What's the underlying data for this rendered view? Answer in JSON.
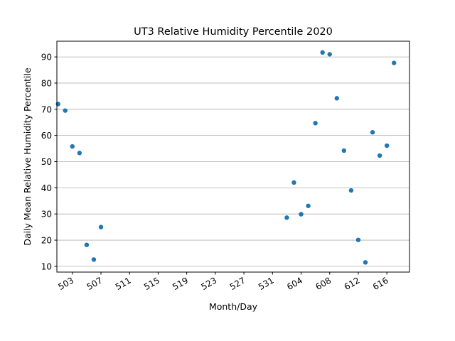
{
  "chart_data": {
    "type": "scatter",
    "title": "UT3 Relative Humidity Percentile 2020",
    "xlabel": "Month/Day",
    "ylabel": "Daily Mean Relative Humidity Percentile",
    "x_tick_labels": [
      "503",
      "507",
      "511",
      "515",
      "519",
      "523",
      "527",
      "531",
      "604",
      "608",
      "612",
      "616"
    ],
    "x_tick_dates": [
      "2020-05-03",
      "2020-05-07",
      "2020-05-11",
      "2020-05-15",
      "2020-05-19",
      "2020-05-23",
      "2020-05-27",
      "2020-05-31",
      "2020-06-04",
      "2020-06-08",
      "2020-06-12",
      "2020-06-16"
    ],
    "xlim": [
      "2020-04-30T20:00",
      "2020-06-19T04:00"
    ],
    "y_ticks": [
      10,
      20,
      30,
      40,
      50,
      60,
      70,
      80,
      90
    ],
    "ylim": [
      7.8,
      96
    ],
    "grid": "y-major",
    "marker_color": "#1f77b4",
    "points": [
      {
        "x": "2020-05-01",
        "y": 72
      },
      {
        "x": "2020-05-02",
        "y": 69.5
      },
      {
        "x": "2020-05-03",
        "y": 55.8
      },
      {
        "x": "2020-05-04",
        "y": 53.3
      },
      {
        "x": "2020-05-05",
        "y": 18.2
      },
      {
        "x": "2020-05-06",
        "y": 12.6
      },
      {
        "x": "2020-05-07",
        "y": 25
      },
      {
        "x": "2020-06-02",
        "y": 28.6
      },
      {
        "x": "2020-06-03",
        "y": 42
      },
      {
        "x": "2020-06-04",
        "y": 29.9
      },
      {
        "x": "2020-06-05",
        "y": 33.1
      },
      {
        "x": "2020-06-06",
        "y": 64.7
      },
      {
        "x": "2020-06-07",
        "y": 91.7
      },
      {
        "x": "2020-06-08",
        "y": 91
      },
      {
        "x": "2020-06-09",
        "y": 74.2
      },
      {
        "x": "2020-06-10",
        "y": 54.2
      },
      {
        "x": "2020-06-11",
        "y": 39
      },
      {
        "x": "2020-06-12",
        "y": 20.1
      },
      {
        "x": "2020-06-13",
        "y": 11.5
      },
      {
        "x": "2020-06-14",
        "y": 61.2
      },
      {
        "x": "2020-06-15",
        "y": 52.3
      },
      {
        "x": "2020-06-16",
        "y": 56.1
      },
      {
        "x": "2020-06-17",
        "y": 87.7
      }
    ]
  }
}
